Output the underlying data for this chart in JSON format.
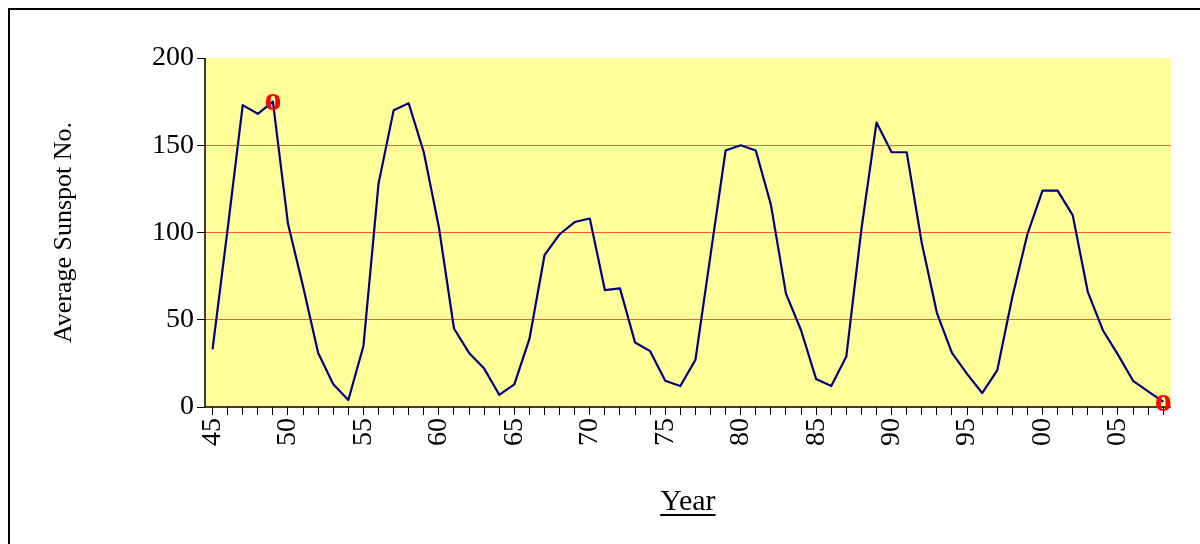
{
  "chart_data": {
    "type": "line",
    "xlabel": "Year",
    "ylabel": "Average Sunspot No.",
    "x": [
      1945,
      1946,
      1947,
      1948,
      1949,
      1950,
      1951,
      1952,
      1953,
      1954,
      1955,
      1956,
      1957,
      1958,
      1959,
      1960,
      1961,
      1962,
      1963,
      1964,
      1965,
      1966,
      1967,
      1968,
      1969,
      1970,
      1971,
      1972,
      1973,
      1974,
      1975,
      1976,
      1977,
      1978,
      1979,
      1980,
      1981,
      1982,
      1983,
      1984,
      1985,
      1986,
      1987,
      1988,
      1989,
      1990,
      1991,
      1992,
      1993,
      1994,
      1995,
      1996,
      1997,
      1998,
      1999,
      2000,
      2001,
      2002,
      2003,
      2004,
      2005,
      2006,
      2007,
      2008
    ],
    "series": [
      {
        "color": "#000080",
        "values": [
          33,
          102,
          173,
          168,
          175,
          105,
          69,
          31,
          13,
          4,
          35,
          128,
          170,
          174,
          146,
          103,
          45,
          31,
          22,
          7,
          13,
          39,
          87,
          99,
          106,
          108,
          67,
          68,
          37,
          32,
          15,
          12,
          27,
          87,
          147,
          150,
          147,
          116,
          65,
          44,
          16,
          12,
          29,
          102,
          163,
          146,
          146,
          94,
          54,
          31,
          19,
          8,
          21,
          63,
          99,
          124,
          124,
          110,
          66,
          44,
          30,
          15,
          9,
          3
        ]
      }
    ],
    "xlim": [
      1944.5,
      2008.5
    ],
    "xticks": [
      {
        "value": 1945,
        "label": "45"
      },
      {
        "value": 1946,
        "label": null
      },
      {
        "value": 1947,
        "label": null
      },
      {
        "value": 1948,
        "label": null
      },
      {
        "value": 1949,
        "label": null
      },
      {
        "value": 1950,
        "label": "50"
      },
      {
        "value": 1951,
        "label": null
      },
      {
        "value": 1952,
        "label": null
      },
      {
        "value": 1953,
        "label": null
      },
      {
        "value": 1954,
        "label": null
      },
      {
        "value": 1955,
        "label": "55"
      },
      {
        "value": 1956,
        "label": null
      },
      {
        "value": 1957,
        "label": null
      },
      {
        "value": 1958,
        "label": null
      },
      {
        "value": 1959,
        "label": null
      },
      {
        "value": 1960,
        "label": "60"
      },
      {
        "value": 1961,
        "label": null
      },
      {
        "value": 1962,
        "label": null
      },
      {
        "value": 1963,
        "label": null
      },
      {
        "value": 1964,
        "label": null
      },
      {
        "value": 1965,
        "label": "65"
      },
      {
        "value": 1966,
        "label": null
      },
      {
        "value": 1967,
        "label": null
      },
      {
        "value": 1968,
        "label": null
      },
      {
        "value": 1969,
        "label": null
      },
      {
        "value": 1970,
        "label": "70"
      },
      {
        "value": 1971,
        "label": null
      },
      {
        "value": 1972,
        "label": null
      },
      {
        "value": 1973,
        "label": null
      },
      {
        "value": 1974,
        "label": null
      },
      {
        "value": 1975,
        "label": "75"
      },
      {
        "value": 1976,
        "label": null
      },
      {
        "value": 1977,
        "label": null
      },
      {
        "value": 1978,
        "label": null
      },
      {
        "value": 1979,
        "label": null
      },
      {
        "value": 1980,
        "label": "80"
      },
      {
        "value": 1981,
        "label": null
      },
      {
        "value": 1982,
        "label": null
      },
      {
        "value": 1983,
        "label": null
      },
      {
        "value": 1984,
        "label": null
      },
      {
        "value": 1985,
        "label": "85"
      },
      {
        "value": 1986,
        "label": null
      },
      {
        "value": 1987,
        "label": null
      },
      {
        "value": 1988,
        "label": null
      },
      {
        "value": 1989,
        "label": null
      },
      {
        "value": 1990,
        "label": "90"
      },
      {
        "value": 1991,
        "label": null
      },
      {
        "value": 1992,
        "label": null
      },
      {
        "value": 1993,
        "label": null
      },
      {
        "value": 1994,
        "label": null
      },
      {
        "value": 1995,
        "label": "95"
      },
      {
        "value": 1996,
        "label": null
      },
      {
        "value": 1997,
        "label": null
      },
      {
        "value": 1998,
        "label": null
      },
      {
        "value": 1999,
        "label": null
      },
      {
        "value": 2000,
        "label": "00"
      },
      {
        "value": 2001,
        "label": null
      },
      {
        "value": 2002,
        "label": null
      },
      {
        "value": 2003,
        "label": null
      },
      {
        "value": 2004,
        "label": null
      },
      {
        "value": 2005,
        "label": "05"
      },
      {
        "value": 2006,
        "label": null
      },
      {
        "value": 2007,
        "label": null
      },
      {
        "value": 2008,
        "label": null
      }
    ],
    "ylim": [
      0,
      200
    ],
    "yticks": [
      0,
      50,
      100,
      150,
      200
    ],
    "grid": "y",
    "marker": "none",
    "line_style": "solid",
    "legend": false,
    "annotations": [
      {
        "text": "o",
        "x": 1949,
        "y": 175
      },
      {
        "text": "o",
        "x": 2008,
        "y": 3
      }
    ]
  }
}
